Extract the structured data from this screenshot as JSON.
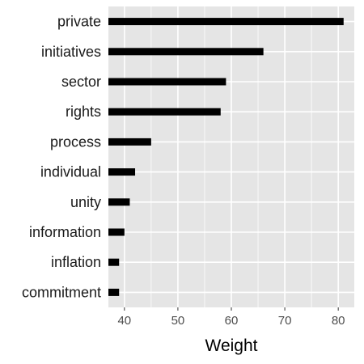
{
  "chart_data": {
    "type": "bar",
    "orientation": "horizontal",
    "title": "",
    "xlabel": "Weight",
    "ylabel": "",
    "categories": [
      "private",
      "initiatives",
      "sector",
      "rights",
      "process",
      "individual",
      "unity",
      "information",
      "inflation",
      "commitment"
    ],
    "values": [
      81,
      66,
      59,
      58,
      45,
      42,
      41,
      40,
      39,
      39
    ],
    "xlim": [
      37,
      83
    ],
    "xticks": [
      40,
      50,
      60,
      70,
      80
    ],
    "grid": true,
    "legend": "none",
    "bar_color": "#000000",
    "panel_color": "#e5e5e5",
    "grid_color": "#ffffff"
  }
}
